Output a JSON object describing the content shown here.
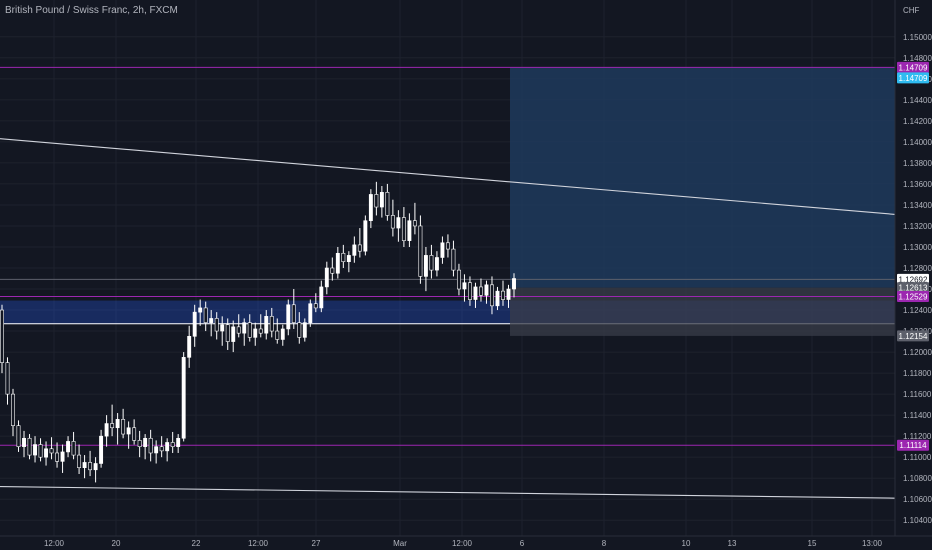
{
  "title": "British Pound / Swiss Franc, 2h, FXCM",
  "currency": "CHF",
  "colors": {
    "background": "#131722",
    "axis_bg": "#131722",
    "grid": "#1e222d",
    "candle": "#ffffff",
    "magenta": "#9c27b0",
    "cyan": "#2fbcf1",
    "trend": "#d1d4dc",
    "zone": "#2962ff",
    "target_zone": "#1e3a5c",
    "stop_zone": "#3a3e4a"
  },
  "chart_data": {
    "type": "candlestick",
    "title": "British Pound / Swiss Franc, 2h, FXCM",
    "ylabel": "CHF",
    "ylim": [
      1.1025,
      1.1535
    ],
    "yticks": [
      "1.10400",
      "1.10600",
      "1.10800",
      "1.11000",
      "1.11200",
      "1.11400",
      "1.11600",
      "1.11800",
      "1.12000",
      "1.12200",
      "1.12400",
      "1.12600",
      "1.12800",
      "1.13000",
      "1.13200",
      "1.13400",
      "1.13600",
      "1.13800",
      "1.14000",
      "1.14200",
      "1.14400",
      "1.14600",
      "1.14800",
      "1.15000"
    ],
    "xticks": [
      "12:00",
      "20",
      "22",
      "12:00",
      "27",
      "Mar",
      "12:00",
      "6",
      "8",
      "10",
      "13",
      "15",
      "13:00"
    ],
    "price_tags": [
      {
        "label": "1.14709",
        "value": 1.14709,
        "color": "#9c27b0"
      },
      {
        "label": "1.14709",
        "value": 1.14609,
        "color": "#2fbcf1"
      },
      {
        "label": "1.12692",
        "value": 1.12692,
        "color": "#ffffff"
      },
      {
        "label": "1.12613",
        "value": 1.12613,
        "color": "#5d606b"
      },
      {
        "label": "1.12529",
        "value": 1.12529,
        "color": "#9c27b0"
      },
      {
        "label": "1.12154",
        "value": 1.12154,
        "color": "#5d606b"
      },
      {
        "label": "1.11114",
        "value": 1.11114,
        "color": "#9c27b0"
      }
    ],
    "horizontal_lines": [
      {
        "value": 1.14709,
        "color": "#9c27b0"
      },
      {
        "value": 1.12529,
        "color": "#9c27b0"
      },
      {
        "value": 1.11114,
        "color": "#9c27b0"
      },
      {
        "value": 1.12692,
        "color": "#5d606b"
      }
    ],
    "zone": {
      "top": 1.1249,
      "bottom": 1.1227
    },
    "position": {
      "entry": 1.12613,
      "target": 1.14709,
      "stop": 1.12154
    },
    "trendlines": [
      {
        "from": [
          0,
          1.1403
        ],
        "to": [
          1,
          1.1331
        ]
      },
      {
        "from": [
          0,
          1.1072
        ],
        "to": [
          1,
          1.1061
        ]
      }
    ],
    "candles": [
      [
        1.124,
        1.1245,
        1.118,
        1.119
      ],
      [
        1.119,
        1.1195,
        1.115,
        1.116
      ],
      [
        1.116,
        1.1165,
        1.112,
        1.113
      ],
      [
        1.113,
        1.1135,
        1.1105,
        1.111
      ],
      [
        1.111,
        1.1125,
        1.11,
        1.1118
      ],
      [
        1.1118,
        1.1122,
        1.1098,
        1.1102
      ],
      [
        1.1102,
        1.112,
        1.1095,
        1.1112
      ],
      [
        1.1112,
        1.1118,
        1.1096,
        1.11
      ],
      [
        1.11,
        1.1115,
        1.1092,
        1.1108
      ],
      [
        1.1108,
        1.1119,
        1.1098,
        1.1104
      ],
      [
        1.1104,
        1.1114,
        1.109,
        1.1096
      ],
      [
        1.1096,
        1.1112,
        1.1085,
        1.1105
      ],
      [
        1.1105,
        1.112,
        1.11,
        1.1115
      ],
      [
        1.1115,
        1.1124,
        1.1098,
        1.1102
      ],
      [
        1.1102,
        1.1112,
        1.1084,
        1.109
      ],
      [
        1.109,
        1.1102,
        1.108,
        1.1095
      ],
      [
        1.1095,
        1.1106,
        1.1082,
        1.1088
      ],
      [
        1.1088,
        1.11,
        1.1076,
        1.1094
      ],
      [
        1.1094,
        1.1126,
        1.109,
        1.112
      ],
      [
        1.112,
        1.114,
        1.111,
        1.1132
      ],
      [
        1.1132,
        1.115,
        1.112,
        1.1128
      ],
      [
        1.1128,
        1.1142,
        1.1112,
        1.1136
      ],
      [
        1.1136,
        1.1146,
        1.1118,
        1.1122
      ],
      [
        1.1122,
        1.1134,
        1.1108,
        1.1128
      ],
      [
        1.1128,
        1.1136,
        1.1112,
        1.1116
      ],
      [
        1.1116,
        1.1125,
        1.11,
        1.111
      ],
      [
        1.111,
        1.1122,
        1.1098,
        1.1118
      ],
      [
        1.1118,
        1.1126,
        1.1096,
        1.1104
      ],
      [
        1.1104,
        1.1116,
        1.1094,
        1.111
      ],
      [
        1.111,
        1.112,
        1.11,
        1.1106
      ],
      [
        1.1106,
        1.1118,
        1.1096,
        1.1114
      ],
      [
        1.1114,
        1.1124,
        1.1104,
        1.111
      ],
      [
        1.111,
        1.1122,
        1.1104,
        1.1118
      ],
      [
        1.1118,
        1.12,
        1.1115,
        1.1195
      ],
      [
        1.1195,
        1.1225,
        1.1185,
        1.1215
      ],
      [
        1.1215,
        1.1245,
        1.1205,
        1.1238
      ],
      [
        1.1238,
        1.125,
        1.1225,
        1.1242
      ],
      [
        1.1242,
        1.1248,
        1.122,
        1.1228
      ],
      [
        1.1228,
        1.124,
        1.1215,
        1.1232
      ],
      [
        1.1232,
        1.1238,
        1.1212,
        1.122
      ],
      [
        1.122,
        1.1234,
        1.1206,
        1.1226
      ],
      [
        1.1226,
        1.1232,
        1.1202,
        1.121
      ],
      [
        1.121,
        1.123,
        1.12,
        1.1224
      ],
      [
        1.1224,
        1.1236,
        1.1214,
        1.1218
      ],
      [
        1.1218,
        1.1232,
        1.1206,
        1.1228
      ],
      [
        1.1228,
        1.1236,
        1.121,
        1.1214
      ],
      [
        1.1214,
        1.1228,
        1.1206,
        1.1222
      ],
      [
        1.1222,
        1.1236,
        1.1214,
        1.1218
      ],
      [
        1.1218,
        1.124,
        1.1212,
        1.1234
      ],
      [
        1.1234,
        1.1242,
        1.1214,
        1.122
      ],
      [
        1.122,
        1.1232,
        1.1208,
        1.1212
      ],
      [
        1.1212,
        1.1226,
        1.1206,
        1.1222
      ],
      [
        1.1222,
        1.125,
        1.1216,
        1.1245
      ],
      [
        1.1245,
        1.126,
        1.1222,
        1.1228
      ],
      [
        1.1228,
        1.1238,
        1.1208,
        1.1214
      ],
      [
        1.1214,
        1.1232,
        1.121,
        1.1228
      ],
      [
        1.1228,
        1.125,
        1.1224,
        1.1246
      ],
      [
        1.1246,
        1.1256,
        1.1238,
        1.1242
      ],
      [
        1.1242,
        1.1268,
        1.1238,
        1.1262
      ],
      [
        1.1262,
        1.1286,
        1.1255,
        1.128
      ],
      [
        1.128,
        1.129,
        1.1268,
        1.1275
      ],
      [
        1.1275,
        1.13,
        1.127,
        1.1294
      ],
      [
        1.1294,
        1.1302,
        1.128,
        1.1286
      ],
      [
        1.1286,
        1.1296,
        1.1276,
        1.1292
      ],
      [
        1.1292,
        1.131,
        1.1285,
        1.1302
      ],
      [
        1.1302,
        1.1318,
        1.129,
        1.1296
      ],
      [
        1.1296,
        1.133,
        1.1292,
        1.1325
      ],
      [
        1.1325,
        1.1355,
        1.1318,
        1.135
      ],
      [
        1.135,
        1.1362,
        1.133,
        1.1338
      ],
      [
        1.1338,
        1.1358,
        1.1328,
        1.1352
      ],
      [
        1.1352,
        1.136,
        1.1325,
        1.133
      ],
      [
        1.133,
        1.1345,
        1.131,
        1.1318
      ],
      [
        1.1318,
        1.1335,
        1.1305,
        1.1328
      ],
      [
        1.1328,
        1.1338,
        1.13,
        1.1306
      ],
      [
        1.1306,
        1.1332,
        1.13,
        1.1325
      ],
      [
        1.1325,
        1.1342,
        1.1312,
        1.132
      ],
      [
        1.132,
        1.133,
        1.1265,
        1.1272
      ],
      [
        1.1272,
        1.13,
        1.1258,
        1.1292
      ],
      [
        1.1292,
        1.1302,
        1.127,
        1.1278
      ],
      [
        1.1278,
        1.1296,
        1.1272,
        1.129
      ],
      [
        1.129,
        1.131,
        1.1284,
        1.1304
      ],
      [
        1.1304,
        1.1312,
        1.129,
        1.1298
      ],
      [
        1.1298,
        1.1306,
        1.1272,
        1.1278
      ],
      [
        1.1278,
        1.1284,
        1.1254,
        1.126
      ],
      [
        1.126,
        1.1274,
        1.1248,
        1.1266
      ],
      [
        1.1266,
        1.1272,
        1.1244,
        1.125
      ],
      [
        1.125,
        1.1266,
        1.1242,
        1.1262
      ],
      [
        1.1262,
        1.127,
        1.1248,
        1.1254
      ],
      [
        1.1254,
        1.1268,
        1.1246,
        1.1264
      ],
      [
        1.1264,
        1.1272,
        1.1236,
        1.1244
      ],
      [
        1.1244,
        1.1262,
        1.124,
        1.1258
      ],
      [
        1.1258,
        1.1268,
        1.1244,
        1.125
      ],
      [
        1.125,
        1.1264,
        1.1242,
        1.126
      ],
      [
        1.126,
        1.1275,
        1.1252,
        1.127
      ]
    ]
  }
}
